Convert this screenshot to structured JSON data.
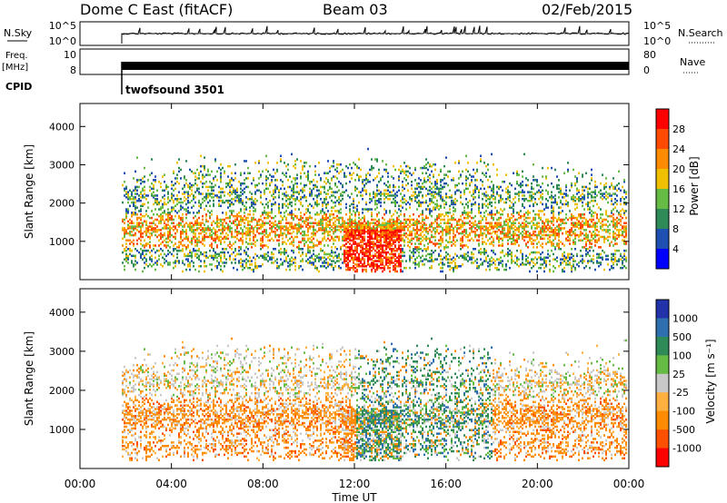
{
  "header": {
    "radar": "Dome C East (fitACF)",
    "beam": "Beam 03",
    "date": "02/Feb/2015"
  },
  "top_panels": {
    "nsky_label": "N.Sky",
    "nsky_ticks": [
      "10^5",
      "10^0"
    ],
    "nsearch_label": "N.Search",
    "nsearch_ticks": [
      "10^5",
      "10^0"
    ],
    "freq_label_1": "Freq.",
    "freq_label_2": "[MHz]",
    "freq_ticks": [
      "10",
      "8"
    ],
    "nave_label": "Nave",
    "nave_ticks": [
      "80",
      "0"
    ],
    "cpid_label": "CPID",
    "cpid_value": "twofsound 3501"
  },
  "colors": {
    "power_scale": [
      "#0000ff",
      "#1f4fb0",
      "#2e8b57",
      "#66bb44",
      "#f0c000",
      "#ff8c00",
      "#ff4a00",
      "#ff0000"
    ],
    "velocity_scale": [
      "#2233aa",
      "#2f6fb0",
      "#2e8b57",
      "#66bb44",
      "#c8c8c8",
      "#ffb040",
      "#ff8c00",
      "#ff5000",
      "#ff0000"
    ]
  },
  "chart_data": [
    {
      "type": "heatmap",
      "name": "power",
      "ylabel": "Slant Range [km]",
      "ylim": [
        0,
        4600
      ],
      "y_ticks": [
        "4000",
        "3000",
        "2000",
        "1000"
      ],
      "x_ticks": [
        "00:00",
        "04:00",
        "08:00",
        "12:00",
        "16:00",
        "20:00",
        "00:00"
      ],
      "colorbar_label": "Power [dB]",
      "colorbar_ticks": [
        "28",
        "24",
        "20",
        "16",
        "12",
        "8",
        "4"
      ]
    },
    {
      "type": "heatmap",
      "name": "velocity",
      "ylabel": "Slant Range [km]",
      "ylim": [
        0,
        4600
      ],
      "y_ticks": [
        "4000",
        "3000",
        "2000",
        "1000"
      ],
      "x_ticks": [
        "00:00",
        "04:00",
        "08:00",
        "12:00",
        "16:00",
        "20:00",
        "00:00"
      ],
      "xlabel": "Time UT",
      "colorbar_label": "Velocity [m s⁻¹]",
      "colorbar_ticks": [
        "1000",
        "500",
        "100",
        "25",
        "-25",
        "-100",
        "-500",
        "-1000"
      ]
    }
  ]
}
